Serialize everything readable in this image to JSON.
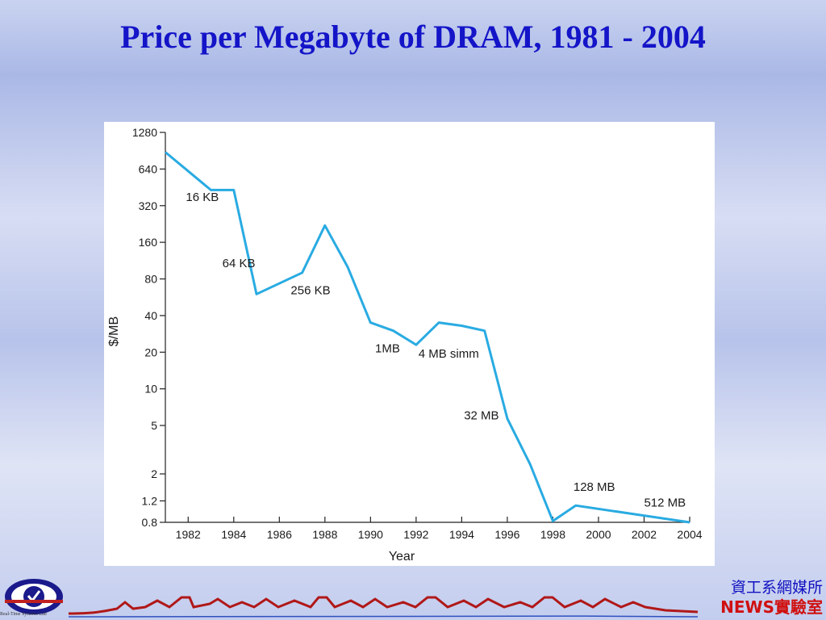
{
  "slide": {
    "title": "Price per Megabyte of DRAM, 1981 - 2004"
  },
  "footer": {
    "logo_caption": "Real-Time Systems Lab",
    "dept_text": "資工系網媒所",
    "lab_text": "NEWS實驗室"
  },
  "colors": {
    "title": "#1414c8",
    "line": "#29abe2",
    "footer_line1": "#1010c0",
    "footer_line2": "#d01010"
  },
  "chart_data": {
    "type": "line",
    "title": "",
    "xlabel": "Year",
    "ylabel": "$/MB",
    "yscale": "log",
    "xlim": [
      1981,
      2004
    ],
    "ylim": [
      0.8,
      1280
    ],
    "x_ticks": [
      1982,
      1984,
      1986,
      1988,
      1990,
      1992,
      1994,
      1996,
      1998,
      2000,
      2002,
      2004
    ],
    "y_ticks": [
      0.8,
      1.2,
      2,
      5,
      10,
      20,
      40,
      80,
      160,
      320,
      640,
      1280
    ],
    "y_tick_labels": [
      "0.8",
      "1.2",
      "2",
      "5",
      "10",
      "20",
      "40",
      "80",
      "160",
      "320",
      "640",
      "1280"
    ],
    "series": [
      {
        "x": [
          1981,
          1983,
          1984,
          1985,
          1987,
          1988,
          1989,
          1990,
          1991,
          1992,
          1993,
          1994,
          1995,
          1996,
          1997,
          1998,
          1999,
          2004
        ],
        "y": [
          880,
          430,
          430,
          60,
          90,
          220,
          100,
          35,
          30,
          23,
          35,
          33,
          30,
          5.7,
          2.4,
          0.82,
          1.1,
          0.8
        ]
      }
    ],
    "annotations": [
      {
        "text": "16 KB",
        "x": 1981.9,
        "y": 350
      },
      {
        "text": "64 KB",
        "x": 1983.5,
        "y": 100
      },
      {
        "text": "256 KB",
        "x": 1986.5,
        "y": 60
      },
      {
        "text": "1MB",
        "x": 1990.2,
        "y": 20
      },
      {
        "text": "4 MB simm",
        "x": 1992.1,
        "y": 18
      },
      {
        "text": "32 MB",
        "x": 1994.1,
        "y": 5.6
      },
      {
        "text": "128 MB",
        "x": 1998.9,
        "y": 1.45
      },
      {
        "text": "512 MB",
        "x": 2002.0,
        "y": 1.08
      }
    ],
    "grid": false,
    "legend": "none"
  }
}
